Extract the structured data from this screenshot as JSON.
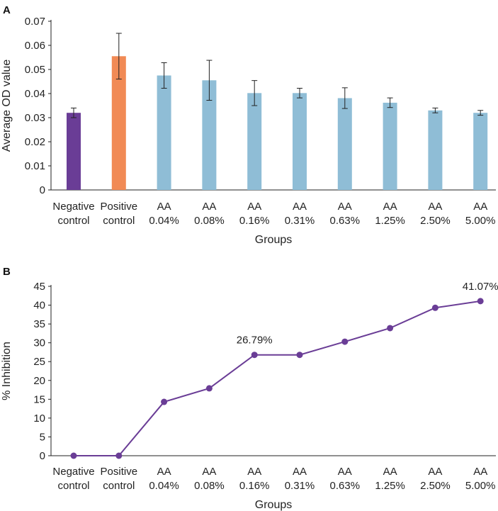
{
  "chart_data": [
    {
      "panel": "A",
      "type": "bar",
      "categories": [
        [
          "Negative",
          "control"
        ],
        [
          "Positive",
          "control"
        ],
        [
          "AA",
          "0.04%"
        ],
        [
          "AA",
          "0.08%"
        ],
        [
          "AA",
          "0.16%"
        ],
        [
          "AA",
          "0.31%"
        ],
        [
          "AA",
          "0.63%"
        ],
        [
          "AA",
          "1.25%"
        ],
        [
          "AA",
          "2.50%"
        ],
        [
          "AA",
          "5.00%"
        ]
      ],
      "values": [
        0.032,
        0.0555,
        0.0475,
        0.0455,
        0.0402,
        0.0402,
        0.0381,
        0.0362,
        0.033,
        0.032
      ],
      "errors": [
        0.002,
        0.0095,
        0.0053,
        0.0083,
        0.0052,
        0.002,
        0.0043,
        0.002,
        0.001,
        0.001
      ],
      "colors": [
        "#6a3d96",
        "#f18a55",
        "#8fbdd6",
        "#8fbdd6",
        "#8fbdd6",
        "#8fbdd6",
        "#8fbdd6",
        "#8fbdd6",
        "#8fbdd6",
        "#8fbdd6"
      ],
      "xlabel": "Groups",
      "ylabel": "Average OD value",
      "ylim": [
        0,
        0.07
      ],
      "yticks": [
        "0",
        "0.01",
        "0.02",
        "0.03",
        "0.04",
        "0.05",
        "0.06",
        "0.07"
      ],
      "ytick_values": [
        0,
        0.01,
        0.02,
        0.03,
        0.04,
        0.05,
        0.06,
        0.07
      ]
    },
    {
      "panel": "B",
      "type": "line",
      "categories": [
        [
          "Negative",
          "control"
        ],
        [
          "Positive",
          "control"
        ],
        [
          "AA",
          "0.04%"
        ],
        [
          "AA",
          "0.08%"
        ],
        [
          "AA",
          "0.16%"
        ],
        [
          "AA",
          "0.31%"
        ],
        [
          "AA",
          "0.63%"
        ],
        [
          "AA",
          "1.25%"
        ],
        [
          "AA",
          "2.50%"
        ],
        [
          "AA",
          "5.00%"
        ]
      ],
      "values": [
        0,
        0,
        14.3,
        17.9,
        26.79,
        26.79,
        30.3,
        33.9,
        39.3,
        41.07
      ],
      "annotations": [
        {
          "index": 4,
          "text": "26.79%"
        },
        {
          "index": 9,
          "text": "41.07%"
        }
      ],
      "line_color": "#6a3d96",
      "xlabel": "Groups",
      "ylabel": "% Inhibition",
      "ylim": [
        0,
        45
      ],
      "yticks": [
        "0",
        "5",
        "10",
        "15",
        "20",
        "25",
        "30",
        "35",
        "40",
        "45"
      ],
      "ytick_values": [
        0,
        5,
        10,
        15,
        20,
        25,
        30,
        35,
        40,
        45
      ]
    }
  ]
}
